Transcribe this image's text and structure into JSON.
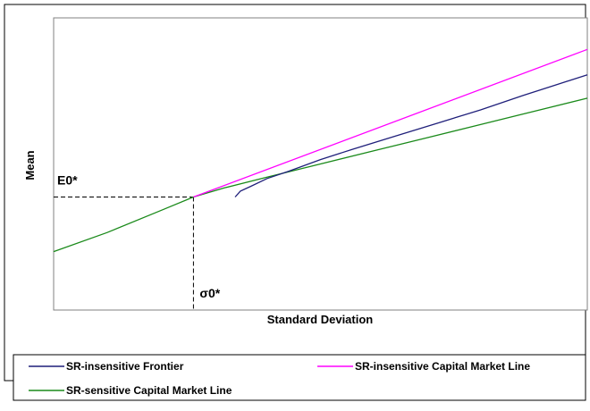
{
  "chart_data": {
    "type": "line",
    "title": "",
    "xlabel": "Standard Deviation",
    "ylabel": "Mean",
    "x_ticks": "none",
    "y_ticks": "none",
    "grid": false,
    "xlim": [
      0,
      100
    ],
    "ylim": [
      0,
      100
    ],
    "legend_position": "bottom",
    "annotations": [
      {
        "label": "E0*",
        "x": 26.2,
        "y": 38.7
      },
      {
        "label": "σ0*",
        "x": 26.2,
        "y": 38.7
      }
    ],
    "series": [
      {
        "name": "SR-insensitive Frontier",
        "color": "#1f1f7a",
        "points": [
          [
            34,
            38.7
          ],
          [
            35,
            40.7
          ],
          [
            37,
            42.4
          ],
          [
            40,
            45
          ],
          [
            44,
            47.5
          ],
          [
            50,
            51.5
          ],
          [
            56,
            55
          ],
          [
            64,
            59.5
          ],
          [
            72,
            64
          ],
          [
            80,
            68.5
          ],
          [
            88,
            73.5
          ],
          [
            94,
            77
          ],
          [
            100,
            80.5
          ]
        ]
      },
      {
        "name": "SR-insensitive Capital Market Line",
        "color": "#ff00ff",
        "points": [
          [
            26.2,
            38.7
          ],
          [
            100,
            89.2
          ]
        ]
      },
      {
        "name": "SR-sensitive Capital Market Line",
        "color": "#1a8a1a",
        "points": [
          [
            0,
            20
          ],
          [
            10,
            26.5
          ],
          [
            20,
            34
          ],
          [
            26.2,
            38.7
          ],
          [
            32,
            41.8
          ],
          [
            40,
            45.5
          ],
          [
            50,
            50
          ],
          [
            60,
            54.5
          ],
          [
            70,
            59
          ],
          [
            80,
            63.5
          ],
          [
            90,
            68
          ],
          [
            100,
            72.5
          ]
        ]
      }
    ]
  }
}
